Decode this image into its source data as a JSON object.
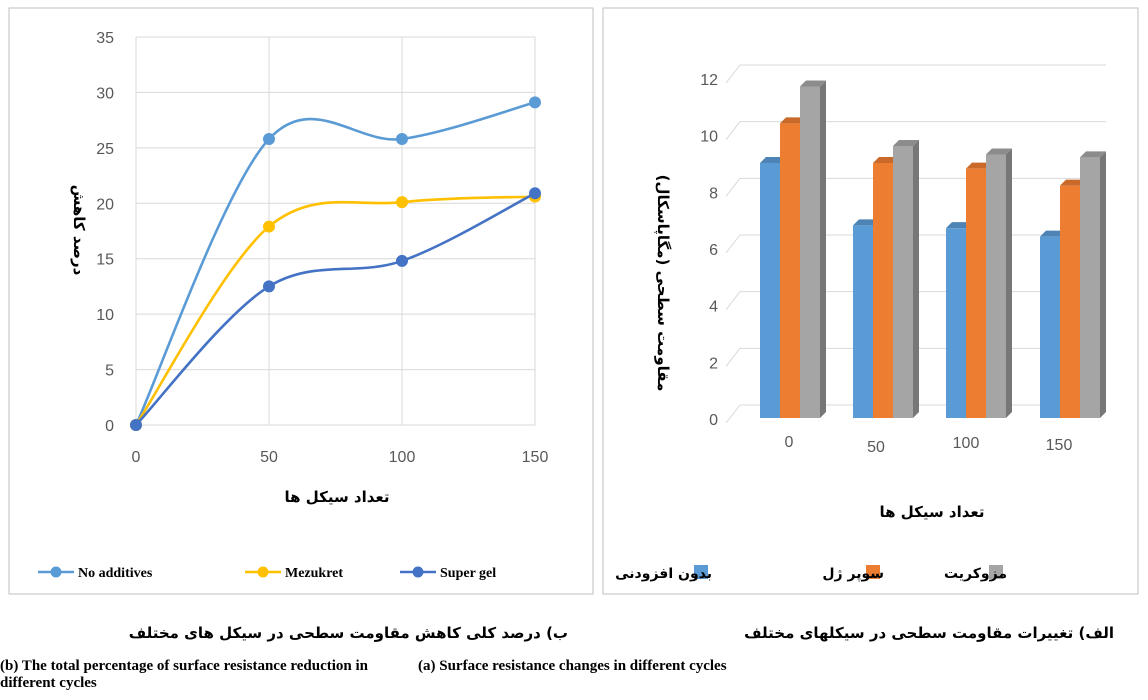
{
  "chart_data": [
    {
      "type": "line",
      "panel": "b",
      "x": [
        0,
        50,
        100,
        150
      ],
      "xlabel": "تعداد سیکل ها",
      "ylabel": "درصد کاهش",
      "ylim": [
        0,
        35
      ],
      "yticks": [
        0,
        5,
        10,
        15,
        20,
        25,
        30,
        35
      ],
      "grid": true,
      "legend_position": "bottom",
      "series": [
        {
          "name": "No additives",
          "values": [
            0,
            25.8,
            25.8,
            29.1
          ],
          "color": "#5B9BD5"
        },
        {
          "name": "Mezukret",
          "values": [
            0,
            17.9,
            20.1,
            20.6
          ],
          "color": "#FFC000"
        },
        {
          "name": "Super gel",
          "values": [
            0,
            12.5,
            14.8,
            20.9
          ],
          "color": "#4472C4"
        }
      ],
      "caption_fa": "ب) درصد کلی کاهش مقاومت سطحی در سیکل های مختلف",
      "caption_en": "(b) The total percentage of surface resistance reduction in different cycles"
    },
    {
      "type": "bar",
      "panel": "a",
      "style": "3d-clustered-column",
      "categories": [
        "0",
        "50",
        "100",
        "150"
      ],
      "xlabel": "تعداد سیکل ها",
      "ylabel": "مقاومت سطحی (مگاپاسکال)",
      "ylim": [
        0,
        12
      ],
      "yticks": [
        0,
        2,
        4,
        6,
        8,
        10,
        12
      ],
      "grid": true,
      "legend_position": "bottom",
      "series": [
        {
          "name": "بدون افزودنی",
          "values": [
            9.0,
            6.8,
            6.7,
            6.4
          ],
          "color": "#5B9BD5"
        },
        {
          "name": "سوپر ژل",
          "values": [
            10.4,
            9.0,
            8.8,
            8.2
          ],
          "color": "#ED7D31"
        },
        {
          "name": "مزوکریت",
          "values": [
            11.7,
            9.6,
            9.3,
            9.2
          ],
          "color": "#A5A5A5"
        }
      ],
      "caption_fa": "الف) تغییرات مقاومت سطحی در سیکلهای مختلف",
      "caption_en": "(a) Surface resistance changes in different cycles"
    }
  ]
}
